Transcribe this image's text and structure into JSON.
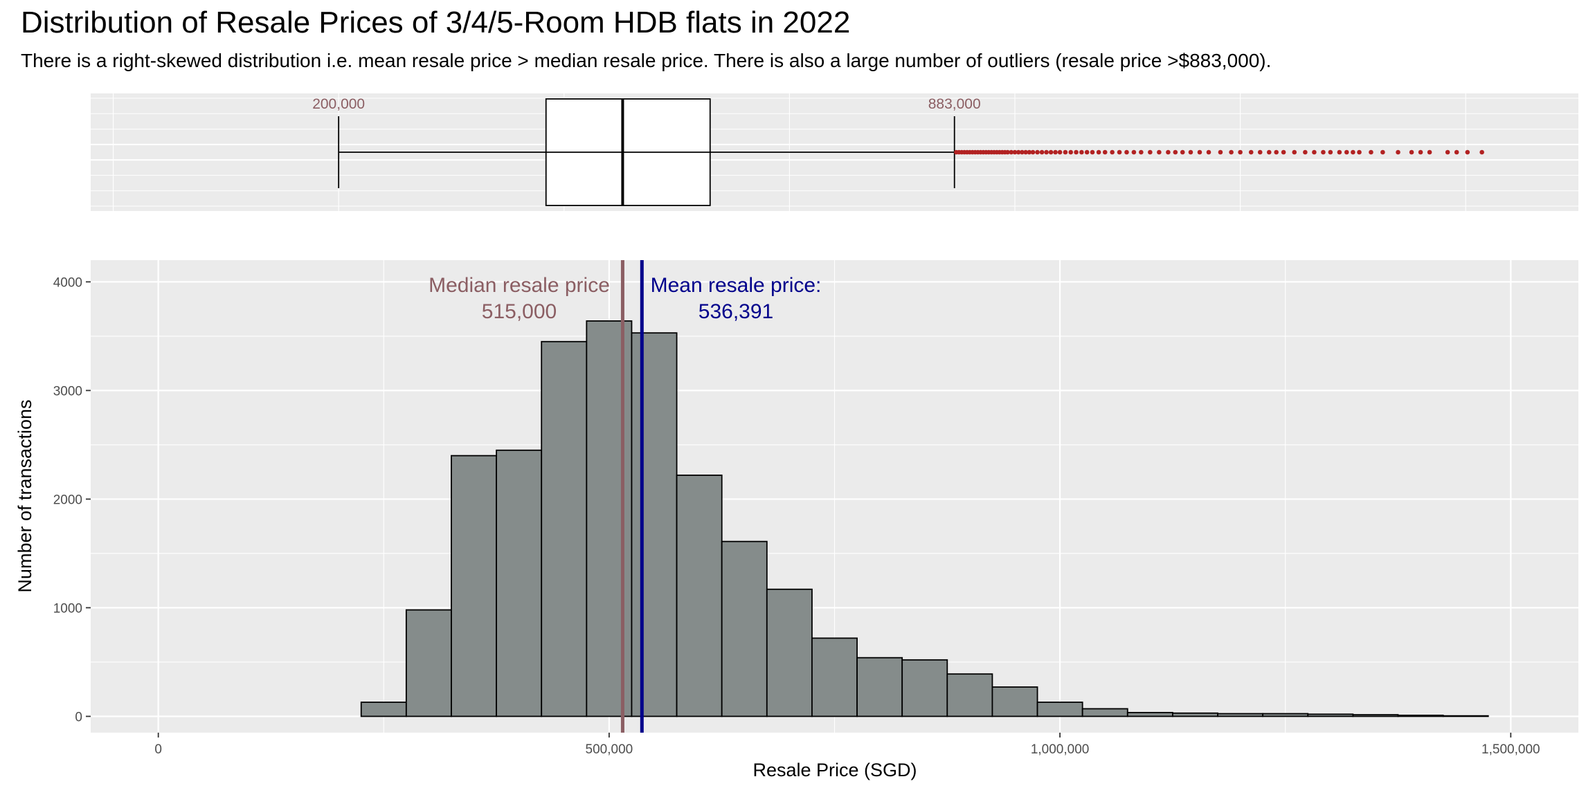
{
  "title": "Distribution of Resale Prices of 3/4/5-Room HDB flats in 2022",
  "subtitle": "There is a right-skewed distribution i.e. mean resale price > median resale price. There is also a large number of outliers (resale price >$883,000).",
  "colors": {
    "panel_bg": "#ebebeb",
    "bar_fill": "#858c8b",
    "median_line": "#8b5e63",
    "mean_line": "#00008b",
    "outlier": "#b22222",
    "whisker_label": "#8b5e63"
  },
  "chart_data": [
    {
      "type": "boxplot",
      "orientation": "horizontal",
      "xlim": [
        -75000,
        1575000
      ],
      "lower_whisker": 200000,
      "q1": 430000,
      "median": 515000,
      "q3": 612000,
      "upper_whisker": 883000,
      "whisker_labels": [
        "200,000",
        "883,000"
      ],
      "outliers": [
        885000,
        888000,
        891000,
        894000,
        897000,
        900000,
        903000,
        906000,
        909000,
        912000,
        915000,
        918000,
        921000,
        924000,
        927000,
        930000,
        933000,
        936000,
        939000,
        942000,
        946000,
        950000,
        954000,
        958000,
        962000,
        966000,
        970000,
        975000,
        980000,
        985000,
        990000,
        995000,
        1000000,
        1006000,
        1012000,
        1018000,
        1024000,
        1030000,
        1036000,
        1043000,
        1050000,
        1058000,
        1066000,
        1074000,
        1082000,
        1090000,
        1100000,
        1110000,
        1120000,
        1128000,
        1136000,
        1145000,
        1155000,
        1165000,
        1178000,
        1190000,
        1200000,
        1212000,
        1222000,
        1232000,
        1240000,
        1248000,
        1260000,
        1272000,
        1282000,
        1292000,
        1300000,
        1310000,
        1318000,
        1325000,
        1332000,
        1345000,
        1358000,
        1375000,
        1390000,
        1400000,
        1410000,
        1430000,
        1440000,
        1452000,
        1468000
      ]
    },
    {
      "type": "histogram",
      "xlabel": "Resale Price (SGD)",
      "ylabel": "Number of transactions",
      "xlim": [
        -75000,
        1575000
      ],
      "ylim": [
        -150,
        4200
      ],
      "xticks": [
        0,
        500000,
        1000000,
        1500000
      ],
      "xtick_labels": [
        "0",
        "500,000",
        "1,000,000",
        "1,500,000"
      ],
      "yticks": [
        0,
        1000,
        2000,
        3000,
        4000
      ],
      "ytick_labels": [
        "0",
        "1000",
        "2000",
        "3000",
        "4000"
      ],
      "bin_width": 50000,
      "bin_left_edges": [
        25000,
        75000,
        125000,
        175000,
        225000,
        275000,
        325000,
        375000,
        425000,
        475000,
        525000,
        575000,
        625000,
        675000,
        725000,
        775000,
        825000,
        875000,
        925000,
        975000,
        1025000,
        1075000,
        1125000,
        1175000,
        1225000,
        1275000,
        1325000,
        1375000,
        1425000
      ],
      "counts": [
        0,
        0,
        0,
        0,
        130,
        980,
        2400,
        2450,
        3450,
        3640,
        3530,
        2220,
        1610,
        1170,
        720,
        540,
        520,
        390,
        270,
        130,
        70,
        35,
        30,
        25,
        25,
        20,
        15,
        10,
        5
      ],
      "median": 515000,
      "mean": 536391,
      "annotations": {
        "median_label": "Median resale price",
        "median_value": "515,000",
        "mean_label": "Mean resale price:",
        "mean_value": "536,391"
      },
      "grid": true,
      "legend": "none"
    }
  ]
}
